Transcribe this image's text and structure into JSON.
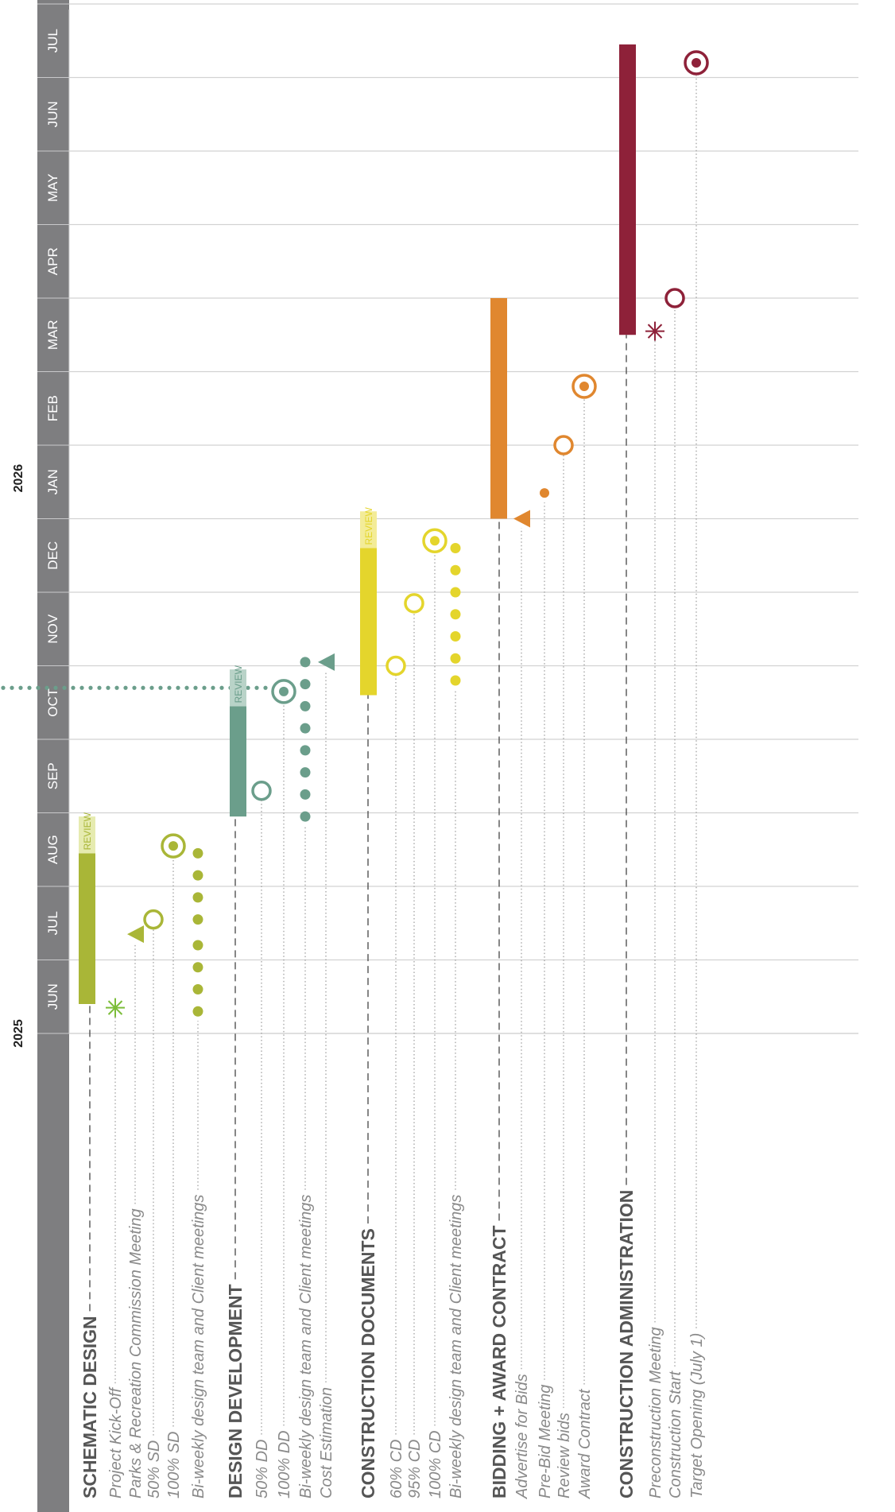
{
  "chart_data": {
    "type": "gantt",
    "orientation": "rotated-90-ccw",
    "years": [
      "2025",
      "2026"
    ],
    "months": [
      "JUN",
      "JUL",
      "AUG",
      "SEP",
      "OCT",
      "NOV",
      "DEC",
      "JAN",
      "FEB",
      "MAR",
      "APR",
      "MAY",
      "JUN",
      "JUL"
    ],
    "review_label": "REVIEW",
    "colors": {
      "header": "#7e7e80",
      "grid": "#d2d2d2",
      "phase_text": "#555555",
      "task_text": "#8a8a8a",
      "schematic": "#a9b637",
      "schematic_review": "#e6ebb0",
      "schematic_star": "#7cbd3a",
      "design_dev": "#6b9e8b",
      "design_dev_review": "#b9d3c8",
      "construction_docs": "#e4d52c",
      "construction_docs_review": "#f3ec98",
      "bidding": "#e0872f",
      "construction_admin": "#8e2139"
    },
    "phases": [
      {
        "name": "SCHEMATIC DESIGN",
        "color_key": "schematic",
        "bar": {
          "start_month": 0.4,
          "end_month": 2.45
        },
        "review": {
          "start_month": 2.45,
          "end_month": 2.95
        },
        "tasks": [
          {
            "label": "Project Kick-Off",
            "marker": "star",
            "month": 0.35
          },
          {
            "label": "Parks & Recreation Commission Meeting",
            "marker": "triangle",
            "month": 1.35
          },
          {
            "label": "50% SD",
            "marker": "ring",
            "month": 1.55
          },
          {
            "label": "100% SD",
            "marker": "target",
            "month": 2.55
          },
          {
            "label": "Bi-weekly design team and Client meetings",
            "marker": "dots",
            "months": [
              0.3,
              0.6,
              0.9,
              1.2,
              1.55,
              1.85,
              2.15,
              2.45
            ]
          }
        ]
      },
      {
        "name": "DESIGN DEVELOPMENT",
        "color_key": "design_dev",
        "bar": {
          "start_month": 2.95,
          "end_month": 4.45
        },
        "review": {
          "start_month": 4.45,
          "end_month": 4.95
        },
        "tasks": [
          {
            "label": "50% DD",
            "marker": "ring",
            "month": 3.3
          },
          {
            "label": "100% DD",
            "marker": "target",
            "month": 4.65
          },
          {
            "label": "Bi-weekly design team and Client meetings",
            "marker": "dots",
            "months": [
              2.95,
              3.25,
              3.55,
              3.85,
              4.15,
              4.45,
              4.75,
              5.05
            ]
          },
          {
            "label": "Cost Estimation",
            "marker": "triangle",
            "month": 5.05
          }
        ]
      },
      {
        "name": "CONSTRUCTION DOCUMENTS",
        "color_key": "construction_docs",
        "bar": {
          "start_month": 4.6,
          "end_month": 6.6
        },
        "review": {
          "start_month": 6.6,
          "end_month": 7.1
        },
        "tasks": [
          {
            "label": "60% CD",
            "marker": "ring",
            "month": 5.0
          },
          {
            "label": "95% CD",
            "marker": "ring",
            "month": 5.85
          },
          {
            "label": "100% CD",
            "marker": "target",
            "month": 6.7
          },
          {
            "label": "Bi-weekly design team and Client meetings",
            "marker": "dots",
            "months": [
              4.8,
              5.1,
              5.4,
              5.7,
              6.0,
              6.3,
              6.6
            ]
          }
        ]
      },
      {
        "name": "BIDDING + AWARD CONTRACT",
        "color_key": "bidding",
        "bar": {
          "start_month": 7.0,
          "end_month": 10.0
        },
        "tasks": [
          {
            "label": "Advertise for Bids",
            "marker": "triangle",
            "month": 7.0
          },
          {
            "label": "Pre-Bid Meeting",
            "marker": "dot",
            "month": 7.35
          },
          {
            "label": "Review bids",
            "marker": "ring",
            "month": 8.0
          },
          {
            "label": "Award Contract",
            "marker": "target",
            "month": 8.8
          }
        ]
      },
      {
        "name": "CONSTRUCTION ADMINISTRATION",
        "color_key": "construction_admin",
        "bar": {
          "start_month": 9.5,
          "end_month": 13.45
        },
        "tasks": [
          {
            "label": "Preconstruction Meeting",
            "marker": "star",
            "month": 9.55
          },
          {
            "label": "Construction Start",
            "marker": "ring",
            "month": 10.0
          },
          {
            "label": "Target Opening (July 1)",
            "marker": "target",
            "month": 13.2
          }
        ]
      }
    ],
    "current_date_line_month": 4.7
  }
}
